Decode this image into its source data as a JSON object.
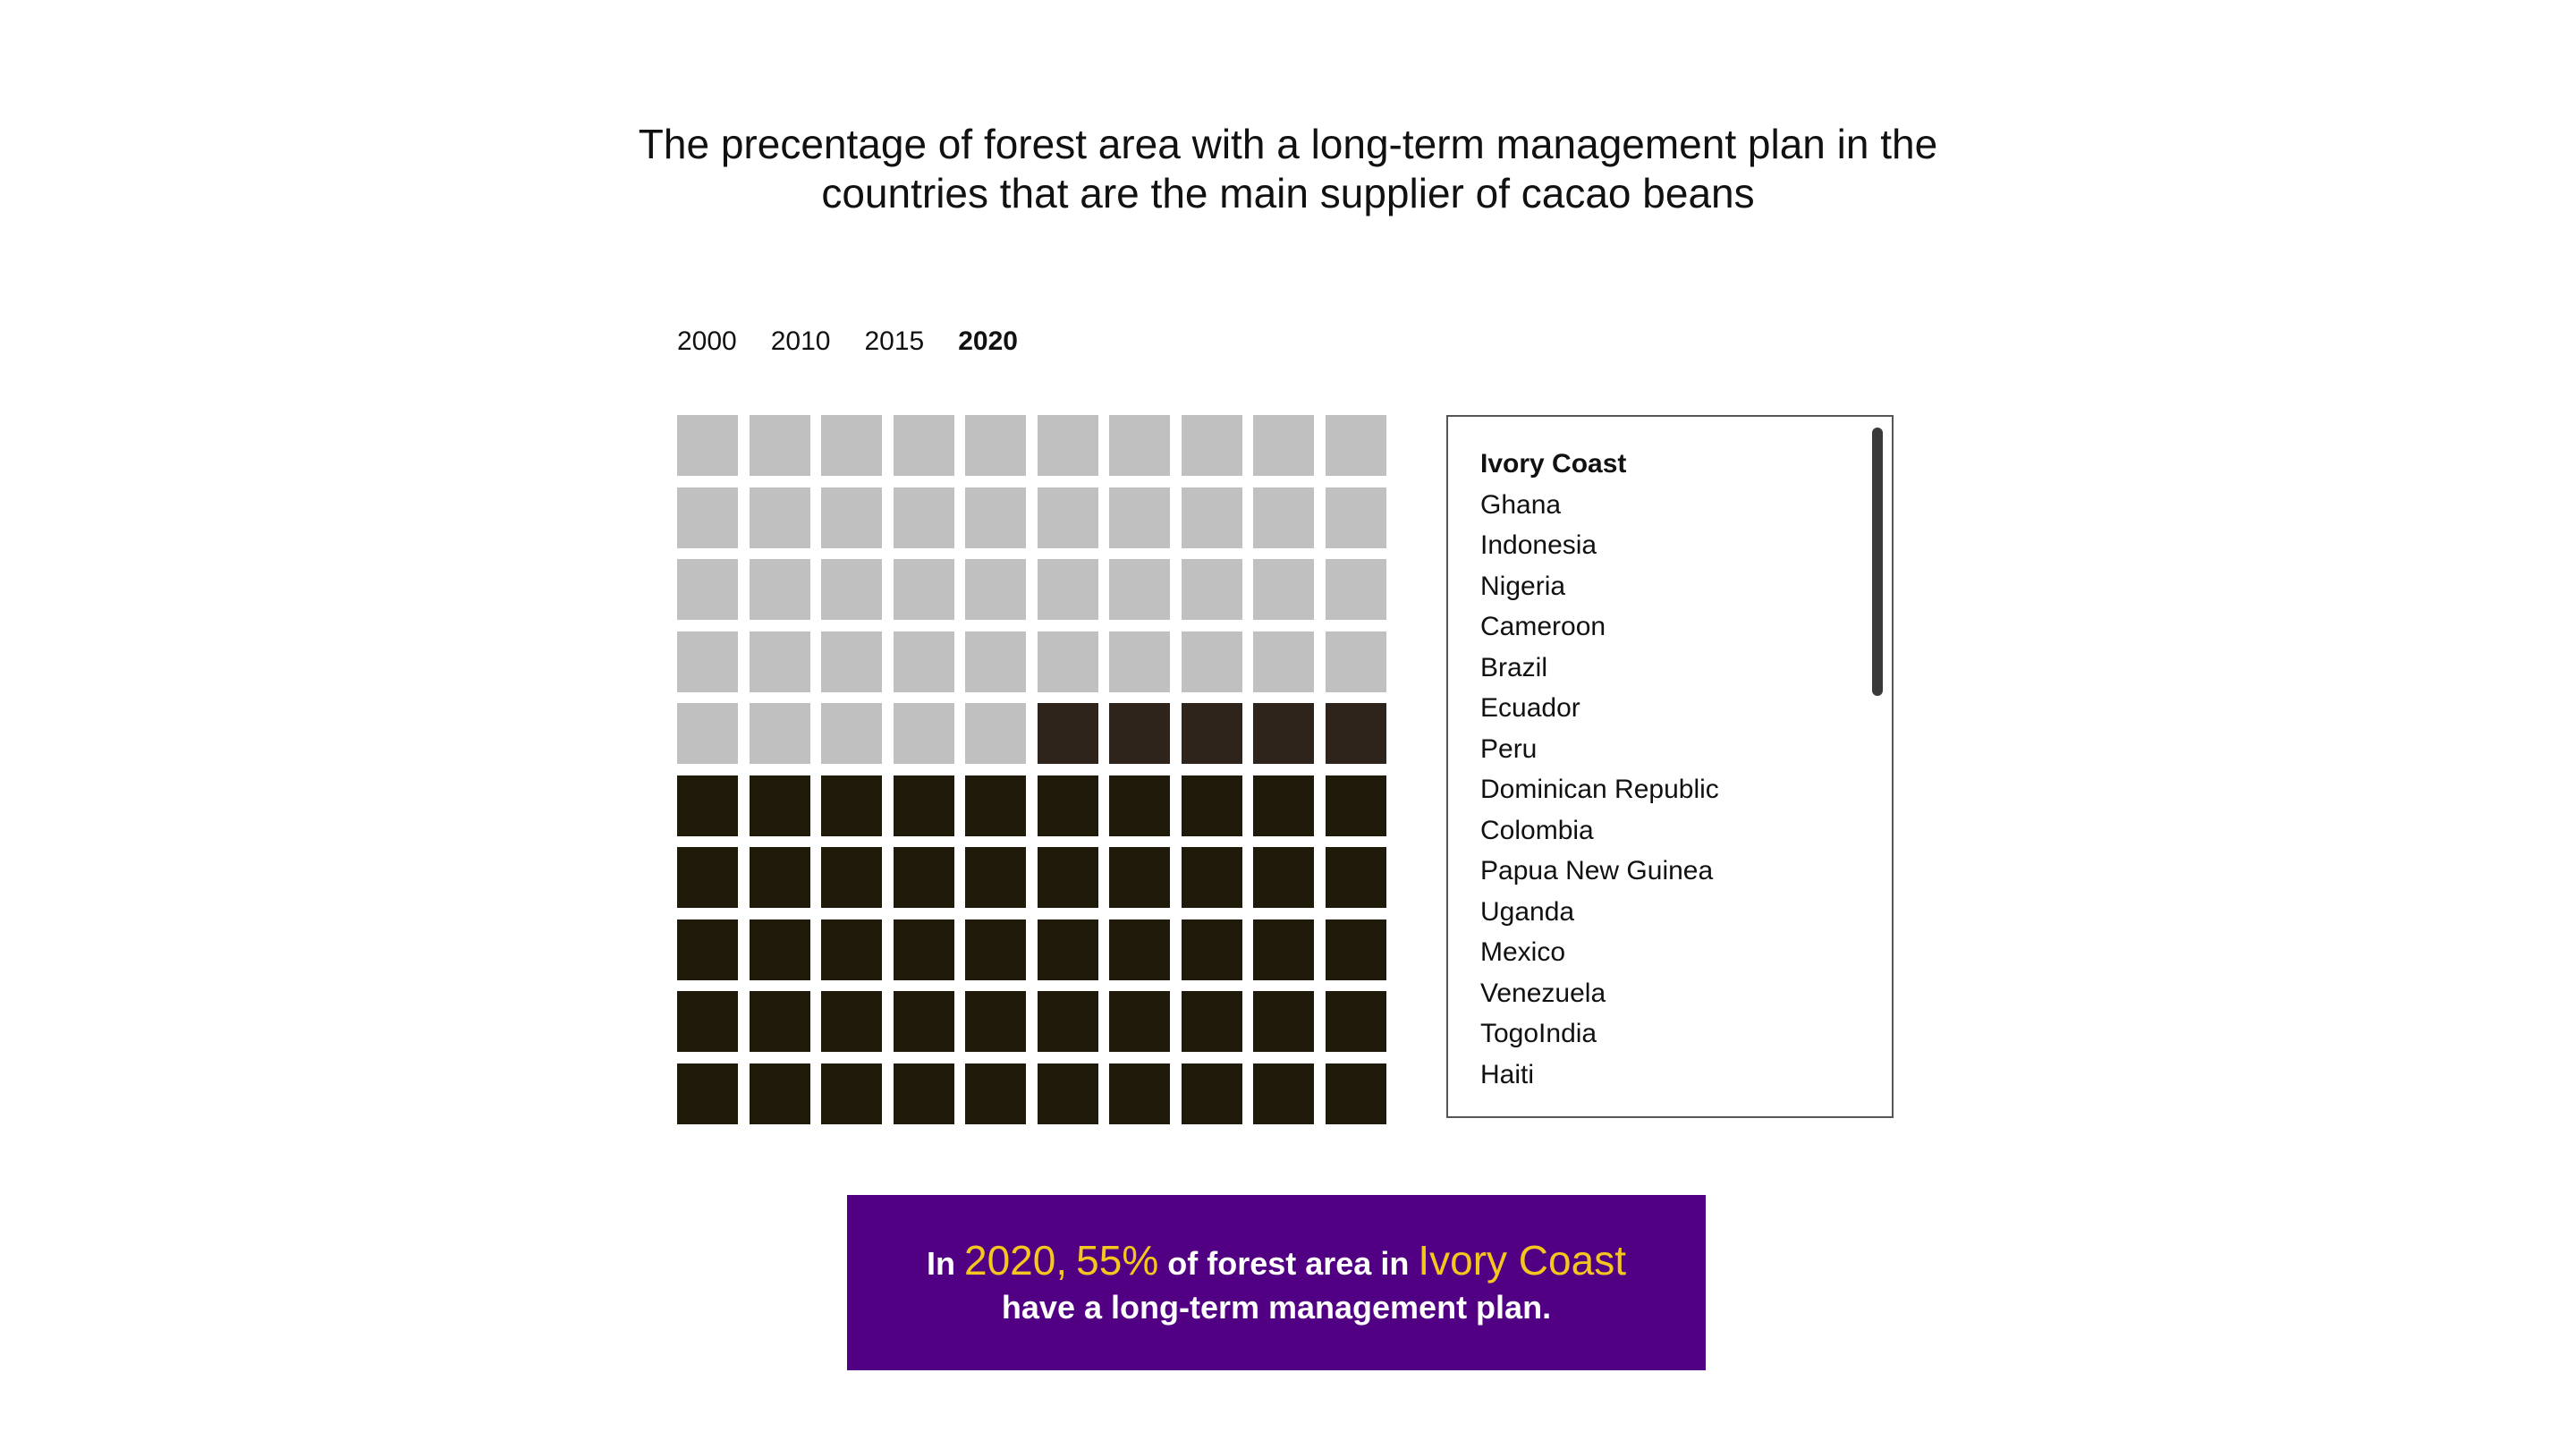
{
  "title_line1": "The precentage of forest area with a long-term management plan in the",
  "title_line2": "countries that are the main supplier of cacao beans",
  "years": [
    {
      "label": "2000",
      "active": false
    },
    {
      "label": "2010",
      "active": false
    },
    {
      "label": "2015",
      "active": false
    },
    {
      "label": "2020",
      "active": true
    }
  ],
  "countries": [
    {
      "label": "Ivory Coast",
      "active": true
    },
    {
      "label": "Ghana",
      "active": false
    },
    {
      "label": "Indonesia",
      "active": false
    },
    {
      "label": "Nigeria",
      "active": false
    },
    {
      "label": "Cameroon",
      "active": false
    },
    {
      "label": "Brazil",
      "active": false
    },
    {
      "label": "Ecuador",
      "active": false
    },
    {
      "label": "Peru",
      "active": false
    },
    {
      "label": "Dominican Republic",
      "active": false
    },
    {
      "label": "Colombia",
      "active": false
    },
    {
      "label": "Papua New Guinea",
      "active": false
    },
    {
      "label": "Uganda",
      "active": false
    },
    {
      "label": "Mexico",
      "active": false
    },
    {
      "label": "Venezuela",
      "active": false
    },
    {
      "label": "TogoIndia",
      "active": false
    },
    {
      "label": "Haiti",
      "active": false
    }
  ],
  "banner": {
    "prefix": "In",
    "year": "2020,",
    "percent": "55%",
    "middle": "of forest area in",
    "country": "Ivory Coast",
    "line2": "have a long-term management plan."
  },
  "chart_data": {
    "type": "waffle",
    "total_cells": 100,
    "rows": 10,
    "columns": 10,
    "selected_year": "2020",
    "selected_country": "Ivory Coast",
    "value_percent": 55,
    "groups": [
      {
        "count": 45,
        "color": "#c0c0c0"
      },
      {
        "count": 5,
        "color": "#2e241b"
      },
      {
        "count": 50,
        "color": "#201a0b"
      }
    ]
  },
  "colors": {
    "empty": "#c0c0c0",
    "filled_dark": "#201a0b",
    "filled_mid": "#2e241b",
    "banner_bg": "#520083",
    "highlight": "#f5c71e"
  }
}
